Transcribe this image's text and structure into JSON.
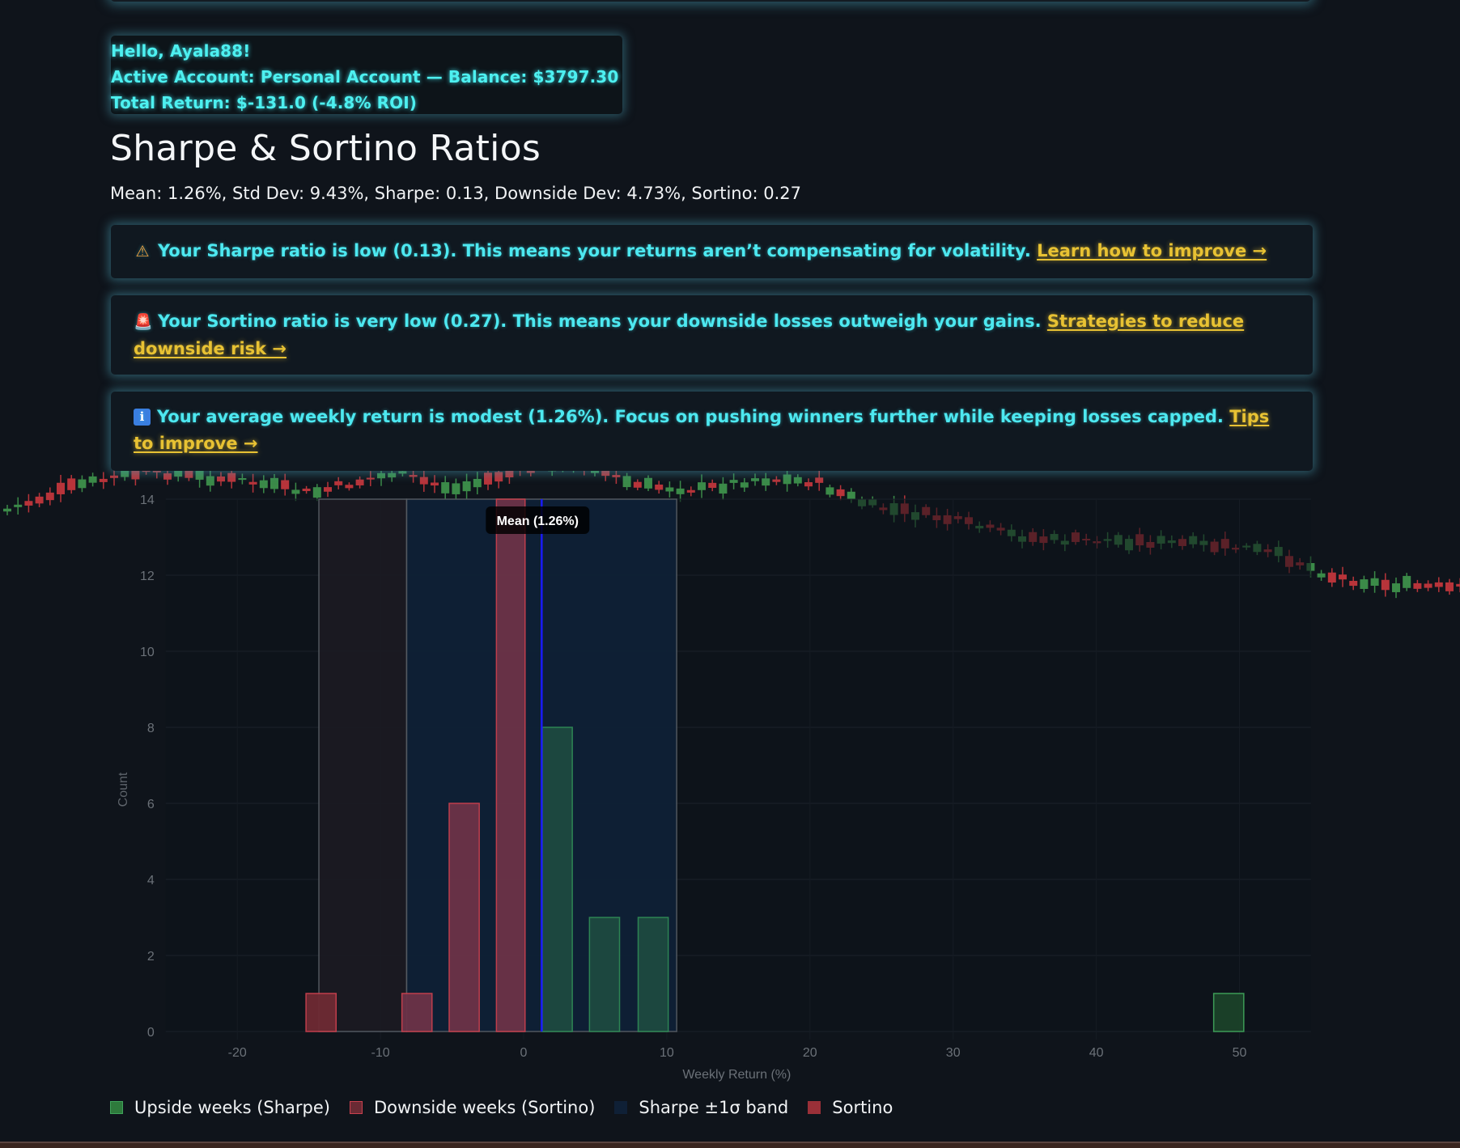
{
  "header": {
    "greeting": "Hello, Ayala88!",
    "account_line": "Active Account: Personal Account — Balance: $3797.30",
    "return_line": "Total Return: $-131.0 (-4.8% ROI)"
  },
  "page": {
    "title": "Sharpe & Sortino Ratios",
    "stats": "Mean: 1.26%, Std Dev: 9.43%, Sharpe: 0.13, Downside Dev: 4.73%, Sortino: 0.27"
  },
  "alerts": [
    {
      "icon": "warning-icon",
      "glyph": "⚠",
      "text": "Your Sharpe ratio is low (0.13). This means your returns aren’t compensating for volatility.",
      "link": "Learn how to improve →"
    },
    {
      "icon": "siren-icon",
      "glyph": "🚨",
      "text": "Your Sortino ratio is very low (0.27). This means your downside losses outweigh your gains.",
      "link": "Strategies to reduce downside risk →"
    },
    {
      "icon": "info-icon",
      "glyph": "i",
      "text": "Your average weekly return is modest (1.26%). Focus on pushing winners further while keeping losses capped.",
      "link": "Tips to improve →"
    }
  ],
  "colors": {
    "accent_cyan": "#4df0f0",
    "link_gold": "#e8c233",
    "upside_green": "#3fa35a",
    "downside_red": "#c9404e",
    "mean_line": "#1a1aff",
    "sharpe_band": "#0f2036",
    "sortino_band": "#1b1a22"
  },
  "chart_data": {
    "type": "bar",
    "title": "",
    "xlabel": "Weekly Return (%)",
    "ylabel": "Count",
    "xlim": [
      -25,
      55
    ],
    "ylim": [
      0,
      14
    ],
    "x_ticks": [
      -20,
      -10,
      0,
      10,
      20,
      30,
      40,
      50
    ],
    "y_ticks": [
      0,
      2,
      4,
      6,
      8,
      10,
      12,
      14
    ],
    "grid": true,
    "series": [
      {
        "name": "Upside weeks (Sharpe)",
        "color": "#3fa35a",
        "bins": [
          {
            "x0": 1.3,
            "x1": 3.4,
            "count": 8
          },
          {
            "x0": 4.6,
            "x1": 6.7,
            "count": 3
          },
          {
            "x0": 8.0,
            "x1": 10.1,
            "count": 3
          },
          {
            "x0": 48.2,
            "x1": 50.3,
            "count": 1
          }
        ]
      },
      {
        "name": "Downside weeks (Sortino)",
        "color": "#c9404e",
        "bins": [
          {
            "x0": -15.2,
            "x1": -13.1,
            "count": 1
          },
          {
            "x0": -8.5,
            "x1": -6.4,
            "count": 1
          },
          {
            "x0": -5.2,
            "x1": -3.1,
            "count": 6
          },
          {
            "x0": -1.9,
            "x1": 0.1,
            "count": 14
          }
        ]
      }
    ],
    "bands": [
      {
        "name": "Sortino",
        "x0": -14.3,
        "x1": -8.17,
        "color": "#1b1a22"
      },
      {
        "name": "Sharpe ±1σ band",
        "x0": -8.17,
        "x1": 10.69,
        "color": "#0f2036"
      }
    ],
    "annotations": [
      {
        "type": "vline",
        "x": 1.26,
        "label": "Mean (1.26%)",
        "color": "#1a1aff"
      }
    ],
    "legend": {
      "position": "bottom-left",
      "entries": [
        {
          "label": "Upside weeks (Sharpe)",
          "swatch": "#2e7a3c",
          "border": "#3fa35a"
        },
        {
          "label": "Downside weeks (Sortino)",
          "swatch": "#6a2a34",
          "border": "#c9404e"
        },
        {
          "label": "Sharpe ±1σ band",
          "swatch": "#0f2036",
          "border": "#0f2036"
        },
        {
          "label": "Sortino",
          "swatch": "#9a3038",
          "border": "#9a3038"
        }
      ]
    }
  }
}
